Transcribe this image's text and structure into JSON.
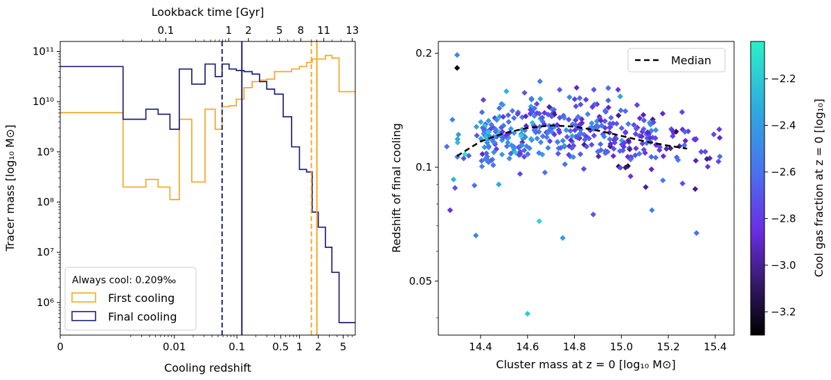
{
  "chart_data": [
    {
      "type": "histogram",
      "title": "",
      "top_axis_label": "Lookback time [Gyr]",
      "top_tick_labels": [
        "0.1",
        "1",
        "2",
        "5",
        "8",
        "11",
        "13"
      ],
      "top_tick_redshifts": [
        0.0073,
        0.074,
        0.153,
        0.48,
        1.05,
        2.45,
        7.0
      ],
      "xlabel": "Cooling redshift",
      "ylabel": "Tracer mass [log₁₀ M⊙]",
      "x_tick_labels": [
        "0",
        "0.01",
        "0.1",
        "0.5",
        "1",
        "2",
        "5"
      ],
      "x_tick_values": [
        0,
        0.01,
        0.1,
        0.5,
        1,
        2,
        5
      ],
      "xlim": [
        0,
        7.8
      ],
      "y_scale": "log",
      "ylim_log10": [
        5.35,
        11.2
      ],
      "y_tick_labels": [
        "10⁶",
        "10⁷",
        "10⁸",
        "10⁹",
        "10¹⁰",
        "10¹¹"
      ],
      "y_tick_log10": [
        6,
        7,
        8,
        9,
        10,
        11
      ],
      "bin_edges": [
        0,
        0.0015,
        0.0035,
        0.0055,
        0.0085,
        0.012,
        0.019,
        0.031,
        0.045,
        0.058,
        0.075,
        0.098,
        0.13,
        0.175,
        0.23,
        0.3,
        0.4,
        0.55,
        0.75,
        1.0,
        1.3,
        1.6,
        2.0,
        2.6,
        3.3,
        4.3,
        5.3,
        7.8
      ],
      "series": [
        {
          "name": "First cooling",
          "color": "#f5a623",
          "log10_values": [
            9.78,
            8.3,
            8.45,
            8.3,
            8.05,
            9.65,
            8.4,
            9.85,
            9.45,
            9.9,
            9.92,
            10.05,
            10.28,
            10.4,
            10.43,
            10.45,
            10.6,
            10.6,
            10.65,
            10.7,
            10.78,
            10.85,
            10.85,
            10.92,
            10.87,
            10.2,
            10.2
          ]
        },
        {
          "name": "Final cooling",
          "color": "#1a1f77",
          "log10_values": [
            10.7,
            9.65,
            9.85,
            9.75,
            9.45,
            10.65,
            10.35,
            10.75,
            10.5,
            10.75,
            10.65,
            10.62,
            10.6,
            10.55,
            10.4,
            10.25,
            10.15,
            9.7,
            9.1,
            8.65,
            8.6,
            7.8,
            7.5,
            7.1,
            6.6,
            5.6,
            5.6
          ]
        }
      ],
      "vlines": [
        {
          "name": "final-cooling-median",
          "x": 0.058,
          "color": "#1a1f77",
          "style": "dashed"
        },
        {
          "name": "final-cooling-mean",
          "x": 0.12,
          "color": "#1a1f77",
          "style": "solid"
        },
        {
          "name": "first-cooling-median",
          "x": 1.55,
          "color": "#f5a623",
          "style": "dashed"
        },
        {
          "name": "first-cooling-mean",
          "x": 1.9,
          "color": "#f5a623",
          "style": "solid"
        }
      ],
      "legend": {
        "placement": "lower-left",
        "title": "Always cool: 0.209‰",
        "entries": [
          "First cooling",
          "Final cooling"
        ]
      }
    },
    {
      "type": "scatter",
      "xlabel": "Cluster mass at z = 0 [log₁₀ M⊙]",
      "ylabel": "Redshift of final cooling",
      "xlim": [
        14.22,
        15.48
      ],
      "x_tick_labels": [
        "14.4",
        "14.6",
        "14.8",
        "15.0",
        "15.2",
        "15.4"
      ],
      "x_tick_values": [
        14.4,
        14.6,
        14.8,
        15.0,
        15.2,
        15.4
      ],
      "y_scale": "log",
      "ylim": [
        0.036,
        0.215
      ],
      "y_tick_labels": [
        "0.05",
        "0.1",
        "0.2"
      ],
      "y_tick_values": [
        0.05,
        0.1,
        0.2
      ],
      "median_line": {
        "name": "Median",
        "x": [
          14.3,
          14.4,
          14.5,
          14.6,
          14.7,
          14.8,
          14.9,
          15.0,
          15.1,
          15.2,
          15.28
        ],
        "y": [
          0.107,
          0.117,
          0.123,
          0.127,
          0.129,
          0.128,
          0.125,
          0.121,
          0.117,
          0.114,
          0.112
        ]
      },
      "color_scale": {
        "label": "Cool gas fraction at z = 0 [log₁₀]",
        "range": [
          -3.3,
          -2.04
        ],
        "tick_labels": [
          "−3.2",
          "−3.0",
          "−2.8",
          "−2.6",
          "−2.4",
          "−2.2"
        ],
        "tick_values": [
          -3.2,
          -3.0,
          -2.8,
          -2.6,
          -2.4,
          -2.2
        ],
        "stops": [
          {
            "v": -3.3,
            "color": "#000000"
          },
          {
            "v": -3.05,
            "color": "#3c1c78"
          },
          {
            "v": -2.85,
            "color": "#6a2de6"
          },
          {
            "v": -2.6,
            "color": "#4a72ee"
          },
          {
            "v": -2.35,
            "color": "#2fa6e0"
          },
          {
            "v": -2.04,
            "color": "#2af0c8"
          }
        ]
      },
      "points_generator": {
        "count": 420,
        "seed": 7,
        "mass_range": [
          14.25,
          15.45
        ]
      },
      "outliers": [
        {
          "x": 14.3,
          "y": 0.198,
          "c": -2.5
        },
        {
          "x": 14.3,
          "y": 0.183,
          "c": -3.25
        },
        {
          "x": 14.27,
          "y": 0.077,
          "c": -2.85
        },
        {
          "x": 14.38,
          "y": 0.066,
          "c": -2.5
        },
        {
          "x": 14.65,
          "y": 0.072,
          "c": -2.15
        },
        {
          "x": 14.6,
          "y": 0.041,
          "c": -2.2
        },
        {
          "x": 14.75,
          "y": 0.065,
          "c": -2.4
        },
        {
          "x": 14.88,
          "y": 0.075,
          "c": -2.7
        },
        {
          "x": 15.13,
          "y": 0.077,
          "c": -2.5
        },
        {
          "x": 15.32,
          "y": 0.067,
          "c": -2.6
        }
      ],
      "legend": {
        "placement": "top-right",
        "entries": [
          "Median"
        ]
      }
    }
  ]
}
